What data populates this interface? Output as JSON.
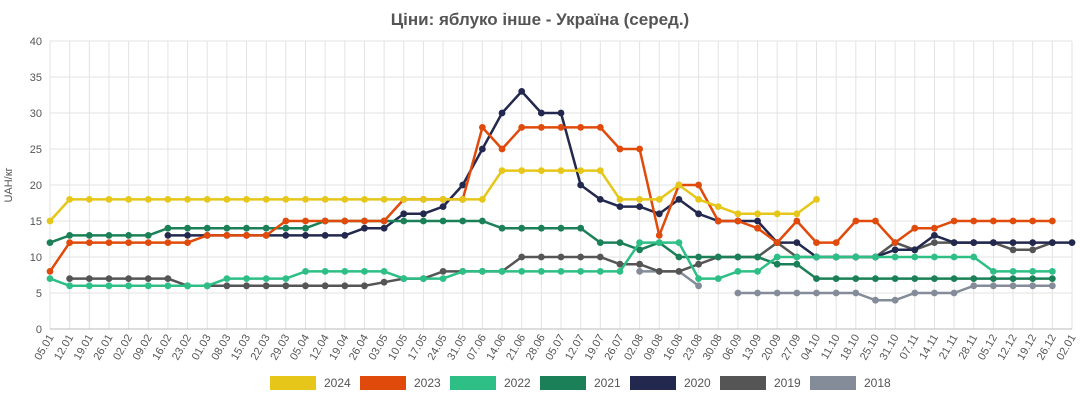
{
  "chart_data": {
    "type": "line",
    "title": "Ціни: яблуко інше - Україна (серед.)",
    "ylabel": "UAH/кг",
    "xlabel": "",
    "ylim": [
      0,
      40
    ],
    "yticks": [
      0,
      5,
      10,
      15,
      20,
      25,
      30,
      35,
      40
    ],
    "grid": true,
    "legend_position": "bottom",
    "categories": [
      "05.01",
      "12.01",
      "19.01",
      "26.01",
      "02.02",
      "09.02",
      "16.02",
      "23.02",
      "01.03",
      "08.03",
      "15.03",
      "22.03",
      "29.03",
      "05.04",
      "12.04",
      "19.04",
      "26.04",
      "03.05",
      "10.05",
      "17.05",
      "24.05",
      "31.05",
      "07.06",
      "14.06",
      "21.06",
      "28.06",
      "05.07",
      "12.07",
      "19.07",
      "26.07",
      "02.08",
      "09.08",
      "16.08",
      "23.08",
      "30.08",
      "06.09",
      "13.09",
      "20.09",
      "27.09",
      "04.10",
      "11.10",
      "18.10",
      "25.10",
      "31.10",
      "07.11",
      "14.11",
      "21.11",
      "28.11",
      "05.12",
      "12.12",
      "19.12",
      "26.12",
      "02.01"
    ],
    "series": [
      {
        "name": "2024",
        "color": "#e6c619",
        "values": [
          15,
          18,
          18,
          18,
          18,
          18,
          18,
          18,
          18,
          18,
          18,
          18,
          18,
          18,
          18,
          18,
          18,
          18,
          18,
          18,
          18,
          18,
          18,
          22,
          22,
          22,
          22,
          22,
          22,
          18,
          18,
          18,
          20,
          18,
          17,
          16,
          16,
          16,
          16,
          18,
          null,
          null,
          null,
          null,
          null,
          null,
          null,
          null,
          null,
          null,
          null,
          null,
          null
        ]
      },
      {
        "name": "2023",
        "color": "#e04a0a",
        "values": [
          8,
          12,
          12,
          12,
          12,
          12,
          12,
          12,
          13,
          13,
          13,
          13,
          15,
          15,
          15,
          15,
          15,
          15,
          18,
          18,
          18,
          18,
          28,
          25,
          28,
          28,
          28,
          28,
          28,
          25,
          25,
          13,
          20,
          20,
          15,
          15,
          14,
          12,
          15,
          12,
          12,
          15,
          15,
          12,
          14,
          14,
          15,
          15,
          15,
          15,
          15,
          15,
          null
        ]
      },
      {
        "name": "2022",
        "color": "#2dbf86",
        "values": [
          7,
          6,
          6,
          6,
          6,
          6,
          6,
          6,
          6,
          7,
          7,
          7,
          7,
          8,
          8,
          8,
          8,
          8,
          7,
          7,
          7,
          8,
          8,
          8,
          8,
          8,
          8,
          8,
          8,
          8,
          12,
          12,
          12,
          7,
          7,
          8,
          8,
          10,
          10,
          10,
          10,
          10,
          10,
          10,
          10,
          10,
          10,
          10,
          8,
          8,
          8,
          8,
          null
        ]
      },
      {
        "name": "2021",
        "color": "#1b8058",
        "values": [
          12,
          13,
          13,
          13,
          13,
          13,
          14,
          14,
          14,
          14,
          14,
          14,
          14,
          14,
          15,
          15,
          15,
          15,
          15,
          15,
          15,
          15,
          15,
          14,
          14,
          14,
          14,
          14,
          12,
          12,
          11,
          12,
          10,
          10,
          10,
          10,
          10,
          9,
          9,
          7,
          7,
          7,
          7,
          7,
          7,
          7,
          7,
          7,
          7,
          7,
          7,
          7,
          null
        ]
      },
      {
        "name": "2020",
        "color": "#23284e",
        "values": [
          null,
          null,
          null,
          null,
          null,
          null,
          13,
          13,
          13,
          13,
          13,
          13,
          13,
          13,
          13,
          13,
          14,
          14,
          16,
          16,
          17,
          20,
          25,
          30,
          33,
          30,
          30,
          20,
          18,
          17,
          17,
          16,
          18,
          16,
          15,
          15,
          15,
          12,
          12,
          10,
          10,
          10,
          10,
          11,
          11,
          13,
          12,
          12,
          12,
          12,
          12,
          12,
          12
        ]
      },
      {
        "name": "2019",
        "color": "#555555",
        "values": [
          null,
          7,
          7,
          7,
          7,
          7,
          7,
          6,
          6,
          6,
          6,
          6,
          6,
          6,
          6,
          6,
          6,
          6.5,
          7,
          7,
          8,
          8,
          8,
          8,
          10,
          10,
          10,
          10,
          10,
          9,
          9,
          8,
          8,
          9,
          10,
          10,
          10,
          12,
          10,
          10,
          10,
          10,
          10,
          12,
          11,
          12,
          12,
          12,
          12,
          11,
          11,
          12,
          null
        ]
      },
      {
        "name": "2018",
        "color": "#848c99",
        "values": [
          null,
          null,
          null,
          null,
          null,
          null,
          null,
          null,
          null,
          null,
          null,
          null,
          null,
          null,
          null,
          null,
          null,
          null,
          null,
          null,
          null,
          null,
          null,
          null,
          null,
          null,
          null,
          null,
          null,
          null,
          8,
          8,
          8,
          6,
          null,
          5,
          5,
          5,
          5,
          5,
          5,
          5,
          4,
          4,
          5,
          5,
          5,
          6,
          6,
          6,
          6,
          6,
          null
        ]
      }
    ]
  }
}
